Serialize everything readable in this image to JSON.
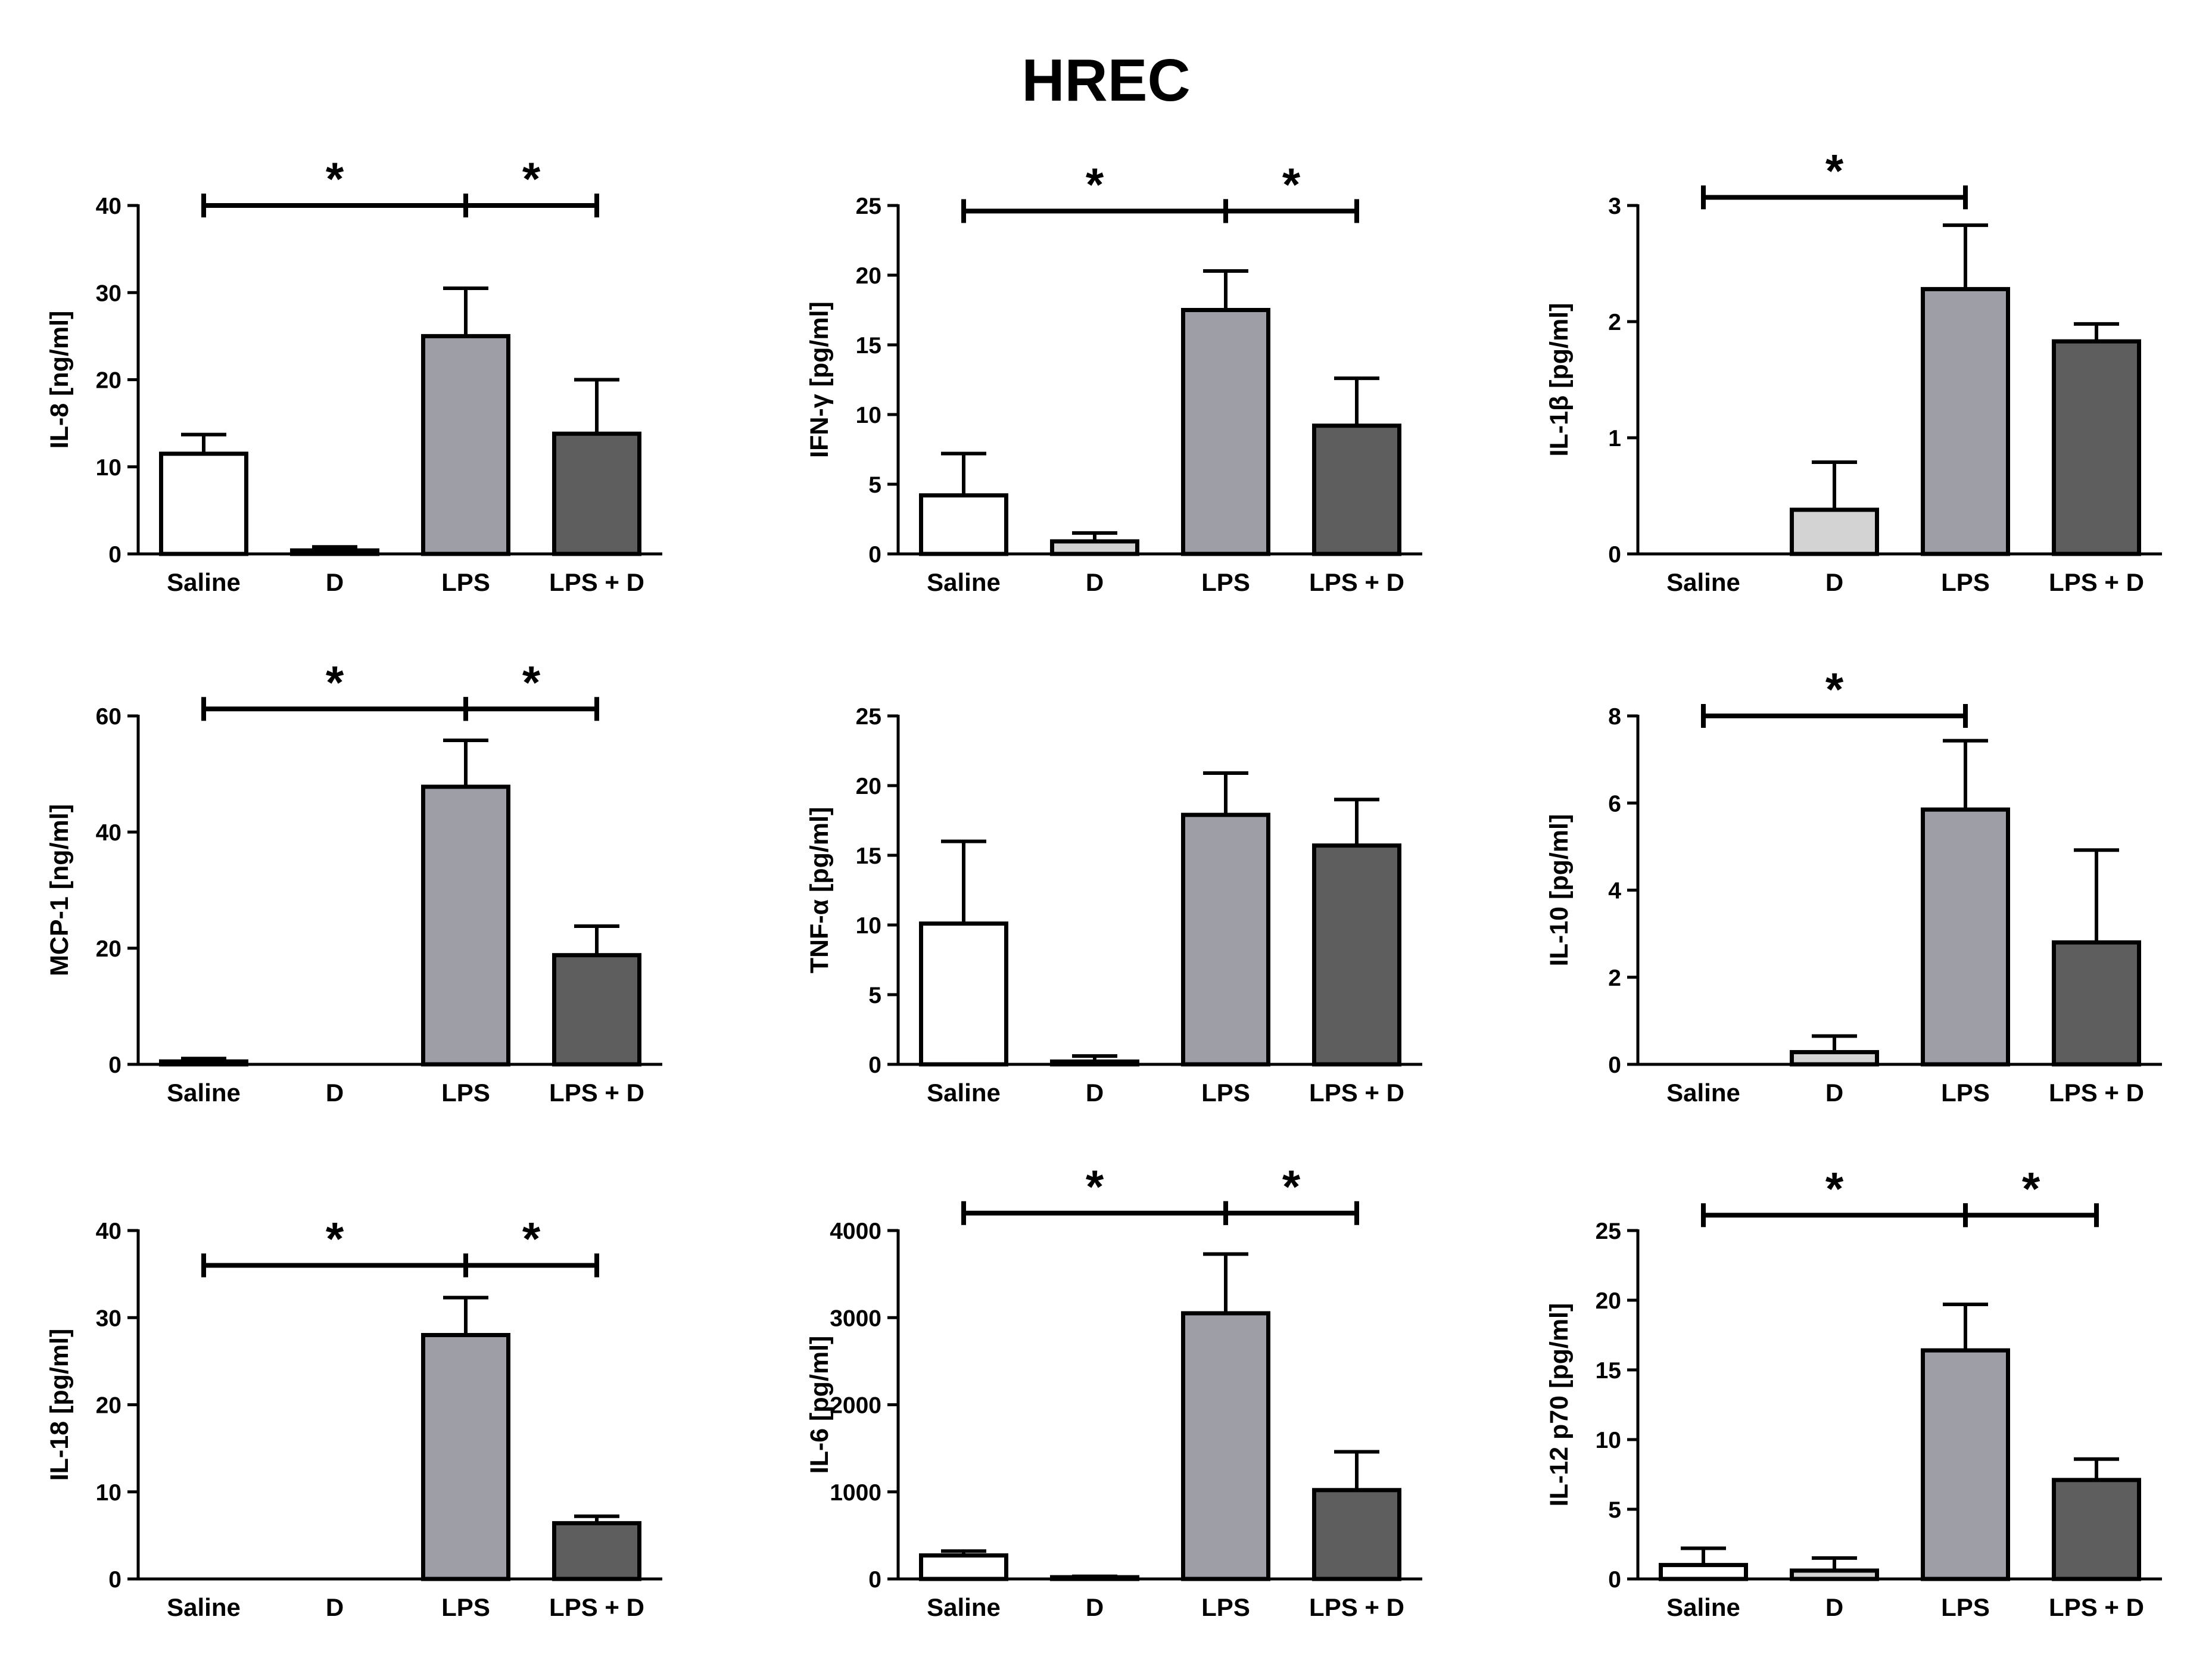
{
  "figure": {
    "title": "HREC"
  },
  "colors": {
    "Saline": "#ffffff",
    "D": "#d3d3d3",
    "LPS": "#9d9ea6",
    "LPS + D": "#5e5e5e",
    "stroke": "#000000"
  },
  "chart_data": [
    {
      "type": "bar",
      "ylabel": "IL-8 [ng/ml]",
      "ylim": [
        0,
        40
      ],
      "yticks": [
        0,
        10,
        20,
        30,
        40
      ],
      "categories": [
        "Saline",
        "D",
        "LPS",
        "LPS + D"
      ],
      "values": [
        11.5,
        0.4,
        25,
        13.8
      ],
      "errors": [
        2.2,
        0.4,
        5.5,
        6.2
      ],
      "significance": [
        {
          "from": "Saline",
          "to": "LPS",
          "label": "*"
        },
        {
          "from": "LPS",
          "to": "LPS + D",
          "label": "*"
        }
      ],
      "sig_y": 40
    },
    {
      "type": "bar",
      "ylabel": "IFN-γ [pg/ml]",
      "ylim": [
        0,
        25
      ],
      "yticks": [
        0,
        5,
        10,
        15,
        20,
        25
      ],
      "categories": [
        "Saline",
        "D",
        "LPS",
        "LPS + D"
      ],
      "values": [
        4.2,
        0.9,
        17.5,
        9.2
      ],
      "errors": [
        3.0,
        0.6,
        2.8,
        3.4
      ],
      "significance": [
        {
          "from": "Saline",
          "to": "LPS",
          "label": "*"
        },
        {
          "from": "LPS",
          "to": "LPS + D",
          "label": "*"
        }
      ],
      "sig_y": 24.6
    },
    {
      "type": "bar",
      "ylabel": "IL-1β [pg/ml]",
      "ylim": [
        0,
        3
      ],
      "yticks": [
        0,
        1,
        2,
        3
      ],
      "categories": [
        "Saline",
        "D",
        "LPS",
        "LPS + D"
      ],
      "values": [
        0,
        0.38,
        2.28,
        1.83
      ],
      "errors": [
        0,
        0.41,
        0.55,
        0.15
      ],
      "significance": [
        {
          "from": "Saline",
          "to": "LPS",
          "label": "*"
        }
      ],
      "sig_y": 3.07
    },
    {
      "type": "bar",
      "ylabel": "MCP-1 [ng/ml]",
      "ylim": [
        0,
        60
      ],
      "yticks": [
        0,
        20,
        40,
        60
      ],
      "categories": [
        "Saline",
        "D",
        "LPS",
        "LPS + D"
      ],
      "values": [
        0.5,
        0,
        47.8,
        18.8
      ],
      "errors": [
        0.5,
        0,
        8.0,
        5.0
      ],
      "significance": [
        {
          "from": "Saline",
          "to": "LPS",
          "label": "*"
        },
        {
          "from": "LPS",
          "to": "LPS + D",
          "label": "*"
        }
      ],
      "sig_y": 61.2
    },
    {
      "type": "bar",
      "ylabel": "TNF-α [pg/ml]",
      "ylim": [
        0,
        25
      ],
      "yticks": [
        0,
        5,
        10,
        15,
        20,
        25
      ],
      "categories": [
        "Saline",
        "D",
        "LPS",
        "LPS + D"
      ],
      "values": [
        10.1,
        0.2,
        17.9,
        15.7
      ],
      "errors": [
        5.9,
        0.4,
        3.0,
        3.3
      ],
      "significance": [],
      "sig_y": 0
    },
    {
      "type": "bar",
      "ylabel": "IL-10 [pg/ml]",
      "ylim": [
        0,
        8
      ],
      "yticks": [
        0,
        2,
        4,
        6,
        8
      ],
      "categories": [
        "Saline",
        "D",
        "LPS",
        "LPS + D"
      ],
      "values": [
        0,
        0.28,
        5.85,
        2.8
      ],
      "errors": [
        0,
        0.37,
        1.58,
        2.12
      ],
      "significance": [
        {
          "from": "Saline",
          "to": "LPS",
          "label": "*"
        }
      ],
      "sig_y": 8.0
    },
    {
      "type": "bar",
      "ylabel": "IL-18 [pg/ml]",
      "ylim": [
        0,
        40
      ],
      "yticks": [
        0,
        10,
        20,
        30,
        40
      ],
      "categories": [
        "Saline",
        "D",
        "LPS",
        "LPS + D"
      ],
      "values": [
        0,
        0,
        28,
        6.4
      ],
      "errors": [
        0,
        0,
        4.3,
        0.8
      ],
      "significance": [
        {
          "from": "Saline",
          "to": "LPS",
          "label": "*"
        },
        {
          "from": "LPS",
          "to": "LPS + D",
          "label": "*"
        }
      ],
      "sig_y": 36
    },
    {
      "type": "bar",
      "ylabel": "IL-6 [pg/ml]",
      "ylim": [
        0,
        4000
      ],
      "yticks": [
        0,
        1000,
        2000,
        3000,
        4000
      ],
      "categories": [
        "Saline",
        "D",
        "LPS",
        "LPS + D"
      ],
      "values": [
        270,
        20,
        3050,
        1020
      ],
      "errors": [
        50,
        10,
        680,
        440
      ],
      "significance": [
        {
          "from": "Saline",
          "to": "LPS",
          "label": "*"
        },
        {
          "from": "LPS",
          "to": "LPS + D",
          "label": "*"
        }
      ],
      "sig_y": 4200
    },
    {
      "type": "bar",
      "ylabel": "IL-12 p70 [pg/ml]",
      "ylim": [
        0,
        25
      ],
      "yticks": [
        0,
        5,
        10,
        15,
        20,
        25
      ],
      "categories": [
        "Saline",
        "D",
        "LPS",
        "LPS + D"
      ],
      "values": [
        1.0,
        0.6,
        16.4,
        7.1
      ],
      "errors": [
        1.2,
        0.9,
        3.3,
        1.5
      ],
      "significance": [
        {
          "from": "Saline",
          "to": "LPS",
          "label": "*"
        },
        {
          "from": "LPS",
          "to": "LPS + D",
          "label": "*"
        }
      ],
      "sig_y": 26.1
    }
  ]
}
